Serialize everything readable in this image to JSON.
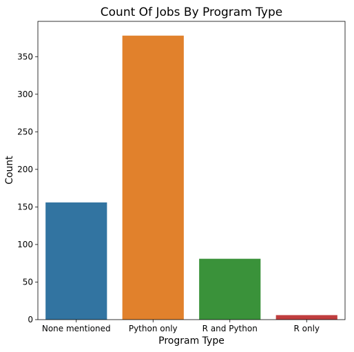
{
  "chart_data": {
    "type": "bar",
    "title": "Count Of Jobs By Program Type",
    "xlabel": "Program Type",
    "ylabel": "Count",
    "categories": [
      "None mentioned",
      "Python only",
      "R and Python",
      "R only"
    ],
    "values": [
      156,
      378,
      81,
      6
    ],
    "colors": [
      "#3274a1",
      "#e1812c",
      "#3a923a",
      "#c03d3e"
    ],
    "ylim": [
      0,
      397
    ],
    "yticks": [
      0,
      50,
      100,
      150,
      200,
      250,
      300,
      350
    ],
    "grid": false,
    "legend": "none"
  }
}
